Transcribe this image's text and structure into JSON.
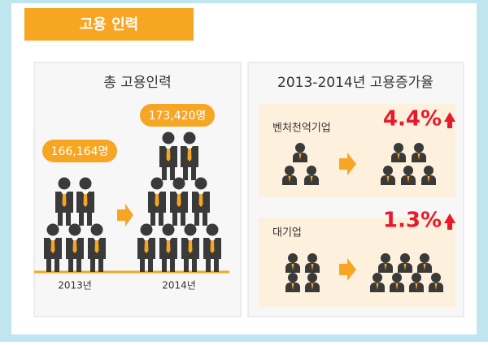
{
  "header": {
    "title": "고용 인력"
  },
  "left_panel": {
    "title": "총 고용인력",
    "items": [
      {
        "label": "166,164명",
        "year": "2013년"
      },
      {
        "label": "173,420명",
        "year": "2014년"
      }
    ]
  },
  "right_panel": {
    "title": "2013-2014년 고용증가율",
    "items": [
      {
        "name": "벤처천억기업",
        "rate": "4.4%"
      },
      {
        "name": "대기업",
        "rate": "1.3%"
      }
    ]
  }
}
